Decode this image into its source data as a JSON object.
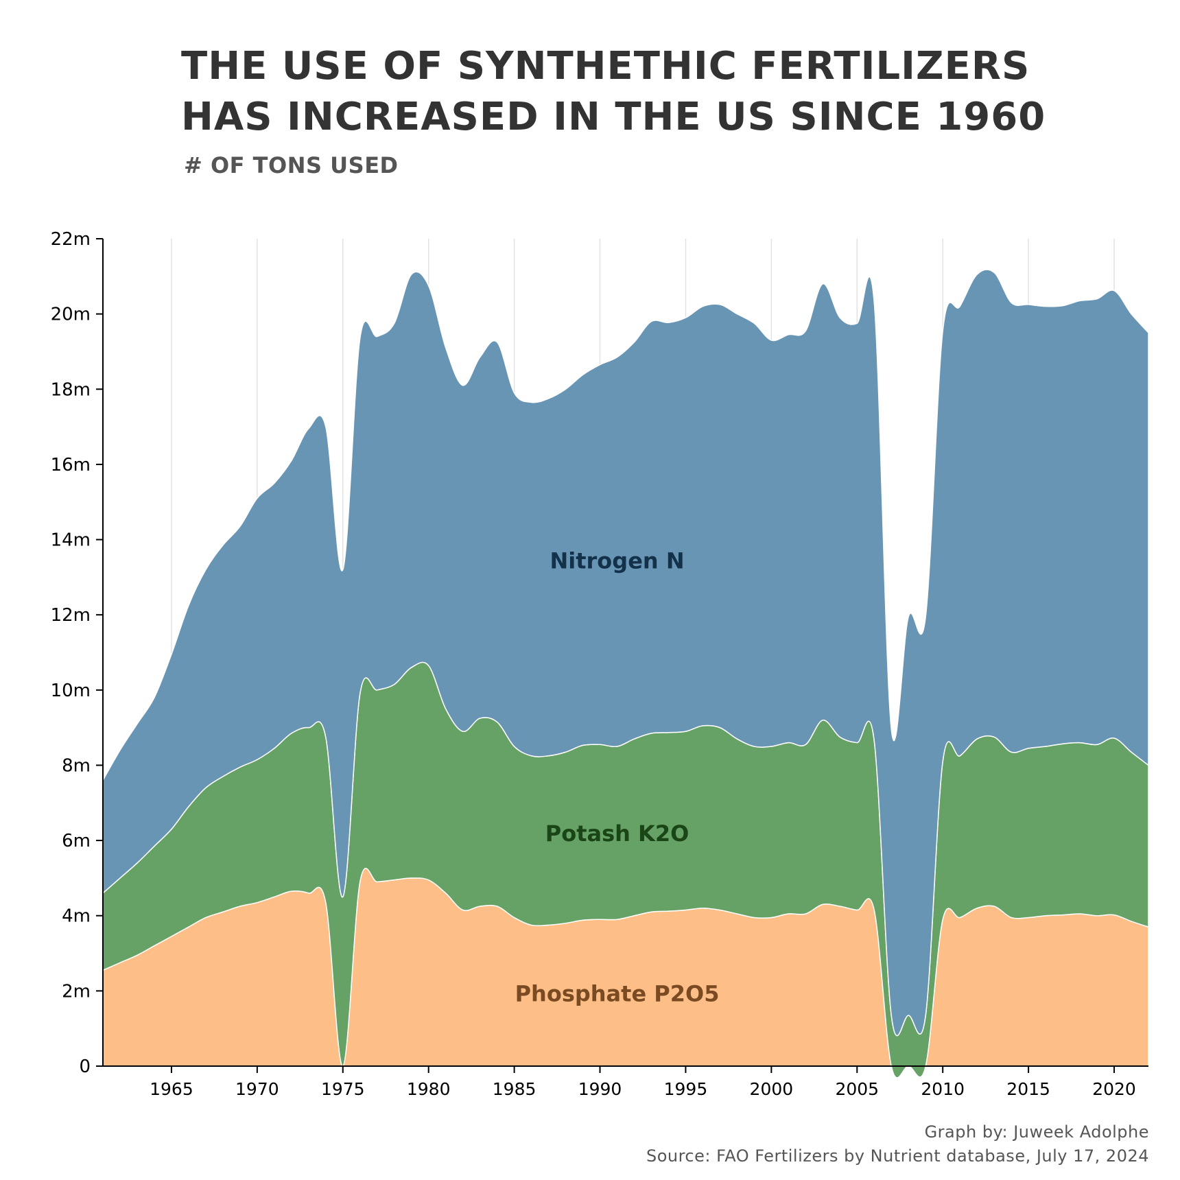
{
  "title_lines": [
    "THE USE OF SYNTHETHIC FERTILIZERS",
    "HAS INCREASED IN THE US SINCE 1960"
  ],
  "subtitle": "# OF TONS USED",
  "credits": {
    "graph_by": "Graph by: Juweek Adolphe",
    "source": "Source: FAO Fertilizers by Nutrient database, July 17, 2024"
  },
  "chart_data": {
    "type": "area",
    "stacked": true,
    "title": "THE USE OF SYNTHETHIC FERTILIZERS HAS INCREASED IN THE US SINCE 1960",
    "ylabel": "# OF TONS USED",
    "xlim": [
      1961,
      2022
    ],
    "ylim": [
      0,
      22
    ],
    "y_unit": "m",
    "x_ticks": [
      1965,
      1970,
      1975,
      1980,
      1985,
      1990,
      1995,
      2000,
      2005,
      2010,
      2015,
      2020
    ],
    "y_ticks": [
      0,
      2,
      4,
      6,
      8,
      10,
      12,
      14,
      16,
      18,
      20,
      22
    ],
    "y_tick_labels": [
      "0",
      "2m",
      "4m",
      "6m",
      "8m",
      "10m",
      "12m",
      "14m",
      "16m",
      "18m",
      "20m",
      "22m"
    ],
    "vertical_grid": true,
    "x": [
      1961,
      1962,
      1963,
      1964,
      1965,
      1966,
      1967,
      1968,
      1969,
      1970,
      1971,
      1972,
      1973,
      1974,
      1975,
      1976,
      1977,
      1978,
      1979,
      1980,
      1981,
      1982,
      1983,
      1984,
      1985,
      1986,
      1987,
      1988,
      1989,
      1990,
      1991,
      1992,
      1993,
      1994,
      1995,
      1996,
      1997,
      1998,
      1999,
      2000,
      2001,
      2002,
      2003,
      2004,
      2005,
      2006,
      2007,
      2008,
      2009,
      2010,
      2011,
      2012,
      2013,
      2014,
      2015,
      2016,
      2017,
      2018,
      2019,
      2020,
      2021,
      2022
    ],
    "series": [
      {
        "name": "Phosphate P2O5",
        "label": "Phosphate P2O5",
        "color": "#fdbf87",
        "label_color": "#7a4a22",
        "values": [
          2.55,
          2.75,
          2.95,
          3.2,
          3.45,
          3.7,
          3.95,
          4.1,
          4.25,
          4.35,
          4.5,
          4.65,
          4.6,
          4.35,
          0,
          4.9,
          4.9,
          4.95,
          5.0,
          4.95,
          4.6,
          4.15,
          4.25,
          4.25,
          3.95,
          3.75,
          3.75,
          3.8,
          3.88,
          3.9,
          3.9,
          4.0,
          4.1,
          4.12,
          4.15,
          4.2,
          4.15,
          4.05,
          3.95,
          3.95,
          4.05,
          4.05,
          4.3,
          4.25,
          4.15,
          4.15,
          0,
          0,
          0,
          3.9,
          3.95,
          4.2,
          4.25,
          3.95,
          3.95,
          4.0,
          4.02,
          4.05,
          4.0,
          4.02,
          3.85,
          3.7
        ]
      },
      {
        "name": "Potash K2O",
        "label": "Potash K2O",
        "color": "#66a265",
        "label_color": "#1a4516",
        "values": [
          2.05,
          2.25,
          2.45,
          2.65,
          2.85,
          3.2,
          3.45,
          3.6,
          3.7,
          3.8,
          3.95,
          4.2,
          4.4,
          4.4,
          4.5,
          5.0,
          5.1,
          5.2,
          5.6,
          5.7,
          4.9,
          4.75,
          5.0,
          4.9,
          4.55,
          4.5,
          4.5,
          4.55,
          4.65,
          4.65,
          4.6,
          4.7,
          4.75,
          4.75,
          4.75,
          4.85,
          4.85,
          4.65,
          4.55,
          4.55,
          4.55,
          4.5,
          4.9,
          4.5,
          4.45,
          4.5,
          1.35,
          1.35,
          1.35,
          4.2,
          4.3,
          4.5,
          4.5,
          4.4,
          4.5,
          4.5,
          4.55,
          4.55,
          4.55,
          4.7,
          4.5,
          4.3
        ]
      },
      {
        "name": "Nitrogen N",
        "label": "Nitrogen N",
        "color": "#6995b5",
        "label_color": "#14314a",
        "values": [
          3.0,
          3.4,
          3.7,
          3.95,
          4.65,
          5.35,
          5.8,
          6.15,
          6.4,
          6.95,
          7.05,
          7.25,
          7.95,
          8.25,
          8.7,
          9.45,
          9.4,
          9.6,
          10.45,
          10.1,
          9.6,
          9.2,
          9.6,
          10.1,
          9.4,
          9.4,
          9.5,
          9.65,
          9.85,
          10.1,
          10.35,
          10.55,
          10.95,
          10.9,
          11.0,
          11.15,
          11.25,
          11.3,
          11.25,
          10.8,
          10.85,
          11.0,
          11.6,
          11.15,
          11.15,
          11.65,
          7.6,
          10.6,
          10.6,
          11.45,
          11.95,
          12.35,
          12.35,
          11.95,
          11.8,
          11.7,
          11.65,
          11.75,
          11.85,
          11.9,
          11.65,
          11.5
        ]
      }
    ]
  }
}
